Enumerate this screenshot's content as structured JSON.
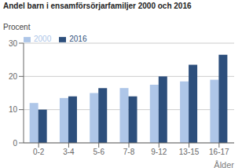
{
  "chart_data": {
    "type": "bar",
    "title": "Andel barn i ensamförsörjarfamiljer 2000 och 2016",
    "ylabel": "Procent",
    "xlabel": "Ålder",
    "categories": [
      "0-2",
      "3-4",
      "5-6",
      "7-8",
      "9-12",
      "13-15",
      "16-17"
    ],
    "series": [
      {
        "name": "2000",
        "color": "#aec6e8",
        "values": [
          12,
          13.5,
          15,
          16.5,
          17.5,
          18.5,
          19
        ]
      },
      {
        "name": "2016",
        "color": "#2d4f7c",
        "values": [
          10,
          14,
          16.5,
          14,
          20,
          23.5,
          26.5
        ]
      }
    ],
    "ylim": [
      0,
      30
    ],
    "yticks": [
      0,
      10,
      20,
      30
    ],
    "grid": true,
    "legend": "upper left"
  }
}
